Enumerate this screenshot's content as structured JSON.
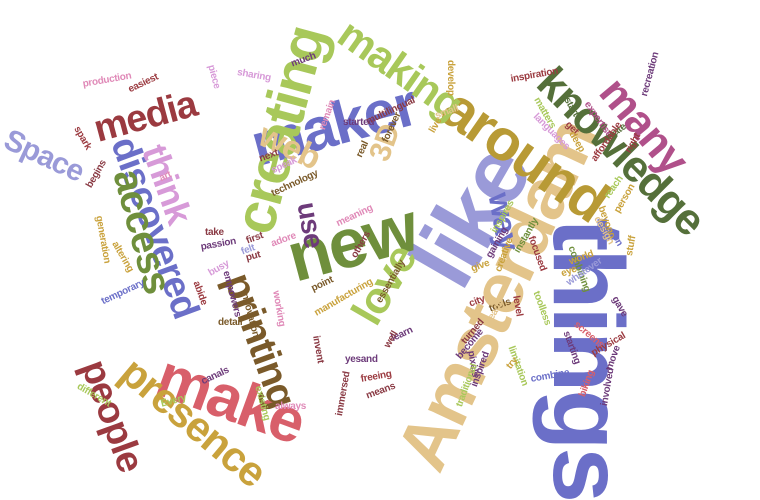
{
  "palette": {
    "slate_blue": "#6b6fc8",
    "periwinkle": "#9a9ad8",
    "olive_green": "#6f8f3c",
    "light_green": "#a8c85a",
    "mustard": "#c9a23c",
    "gold": "#b89a35",
    "sand": "#e3c48a",
    "rose": "#d85f6a",
    "crimson": "#9b3a40",
    "maroon": "#8a3a44",
    "magenta": "#b0508a",
    "pink": "#e08ab8",
    "lilac": "#d79ad8",
    "brown": "#7a5a2a",
    "dark_olive": "#55703a",
    "purple": "#6d3b7a"
  },
  "words": [
    "things",
    "like",
    "Amsterdam",
    "around",
    "new",
    "maker",
    "creating",
    "make",
    "knowledge",
    "making",
    "printing",
    "many",
    "presence",
    "discovered",
    "access",
    "media",
    "love",
    "people",
    "think",
    "web",
    "way",
    "Space",
    "use",
    "3D",
    "production",
    "easiest",
    "piece",
    "sharing",
    "much",
    "remain",
    "multilingual",
    "develop",
    "inspiration",
    "recreation",
    "matters",
    "start",
    "expertise",
    "languages",
    "get",
    "deep",
    "create",
    "affordable",
    "right",
    "started",
    "small",
    "forever",
    "real",
    "live",
    "next",
    "speak",
    "art",
    "technology",
    "spark",
    "begins",
    "generation",
    "altering",
    "take",
    "passion",
    "felt",
    "first",
    "adore",
    "meaning",
    "others",
    "inspires",
    "reach",
    "beyond",
    "design",
    "person",
    "combining",
    "focused",
    "instantly",
    "gaining",
    "give",
    "stuff",
    "on",
    "busy",
    "temporary",
    "empowers",
    "abide",
    "detail",
    "innovation",
    "working",
    "put",
    "point",
    "manufacturing",
    "essentially",
    "city",
    "creative",
    "tools",
    "level",
    "toolless",
    "eye",
    "zero",
    "world",
    "whatever",
    "gave",
    "screens",
    "starting",
    "physical",
    "move",
    "biking",
    "combine",
    "involved",
    "limitation",
    "pixels",
    "try",
    "ready",
    "inspired",
    "turned",
    "become",
    "learn",
    "well",
    "yesand",
    "invent",
    "means",
    "freeing",
    "immersed",
    "traditional",
    "always",
    "existing",
    "canals",
    "different",
    "Every"
  ]
}
